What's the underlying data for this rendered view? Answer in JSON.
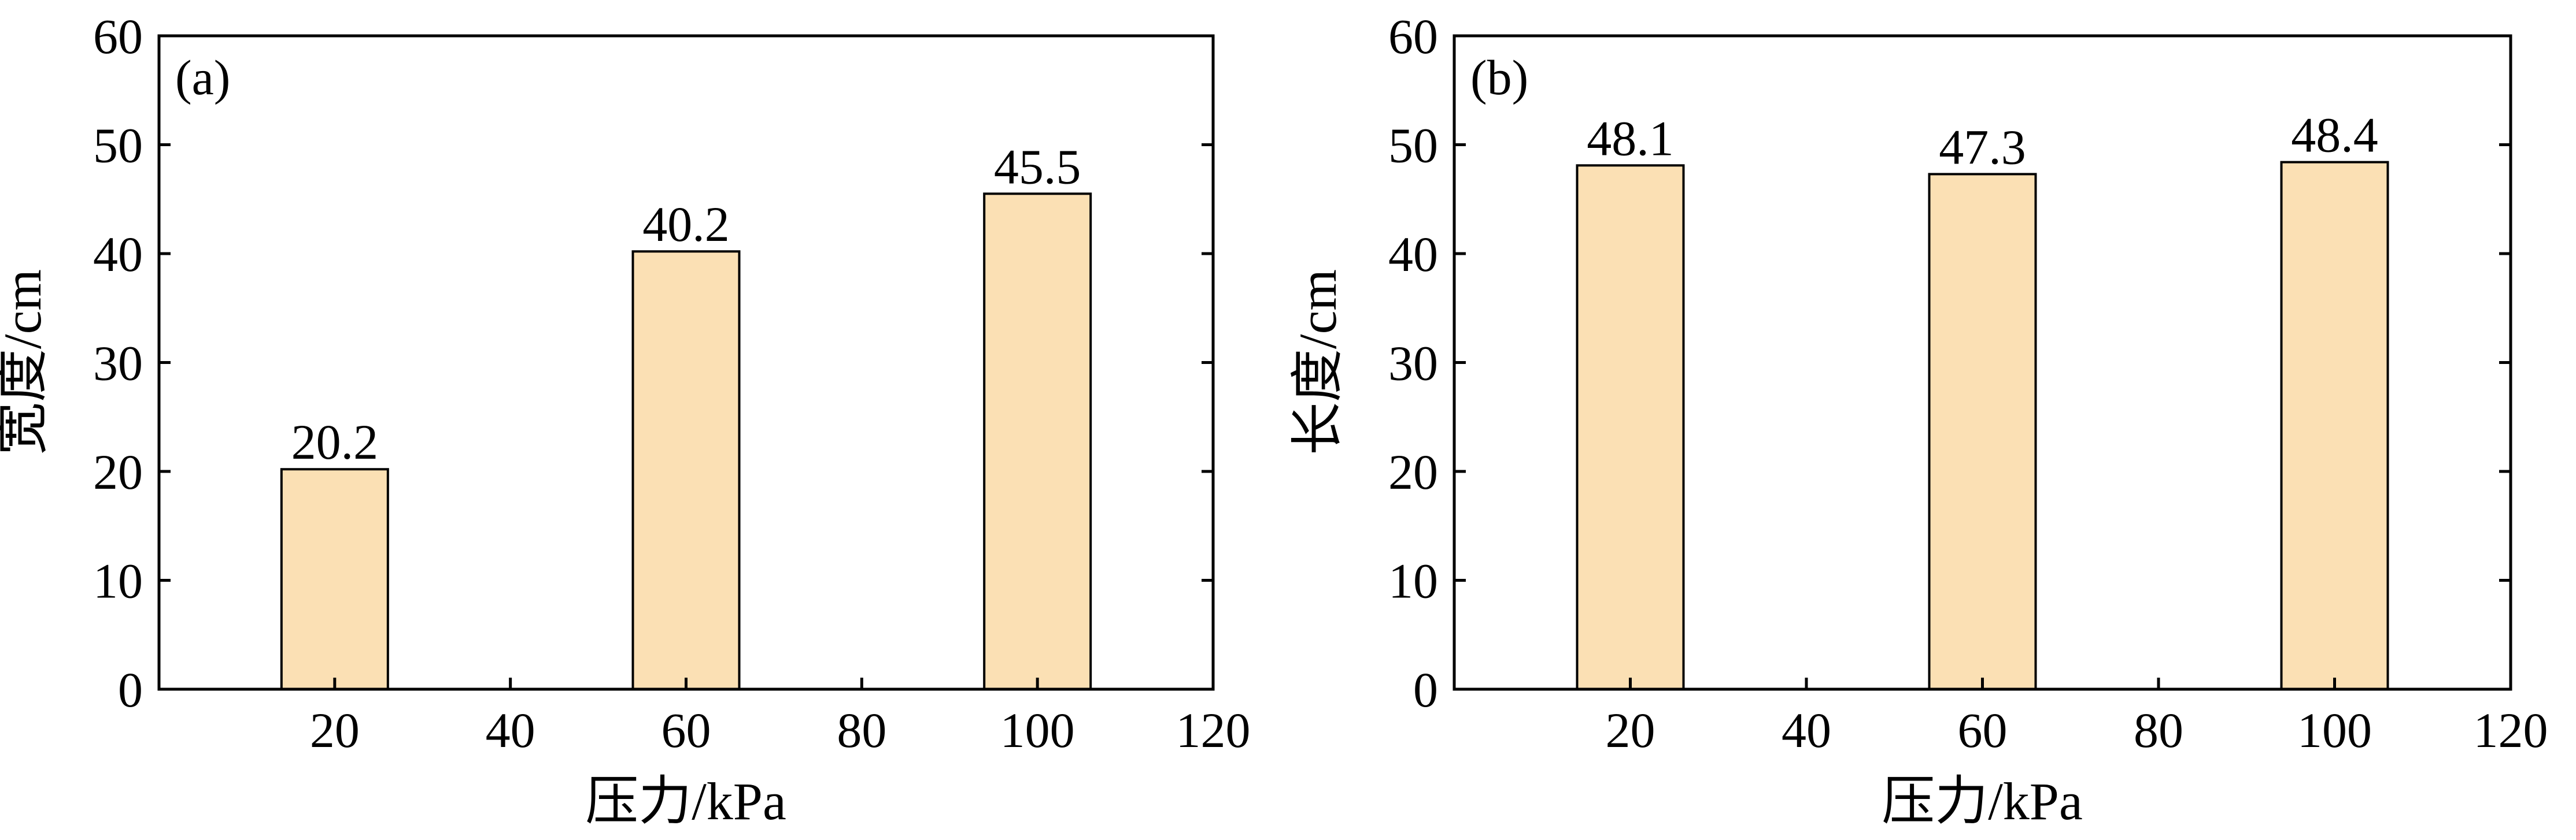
{
  "chart_data": [
    {
      "type": "bar",
      "panel_label": "(a)",
      "x": [
        20,
        60,
        100
      ],
      "values": [
        20.2,
        40.2,
        45.5
      ],
      "data_labels": [
        "20.2",
        "40.2",
        "45.5"
      ],
      "xlabel": "压力/kPa",
      "ylabel": "宽度/cm",
      "xlim": [
        0,
        120
      ],
      "ylim": [
        0,
        60
      ],
      "xticks": [
        20,
        40,
        60,
        80,
        100,
        120
      ],
      "yticks": [
        0,
        10,
        20,
        30,
        40,
        50,
        60
      ],
      "bar_color": "#FBE0B4",
      "grid": false
    },
    {
      "type": "bar",
      "panel_label": "(b)",
      "x": [
        20,
        60,
        100
      ],
      "values": [
        48.1,
        47.3,
        48.4
      ],
      "data_labels": [
        "48.1",
        "47.3",
        "48.4"
      ],
      "xlabel": "压力/kPa",
      "ylabel": "长度/cm",
      "xlim": [
        0,
        120
      ],
      "ylim": [
        0,
        60
      ],
      "xticks": [
        20,
        40,
        60,
        80,
        100,
        120
      ],
      "yticks": [
        0,
        10,
        20,
        30,
        40,
        50,
        60
      ],
      "bar_color": "#FBE0B4",
      "grid": false
    }
  ]
}
